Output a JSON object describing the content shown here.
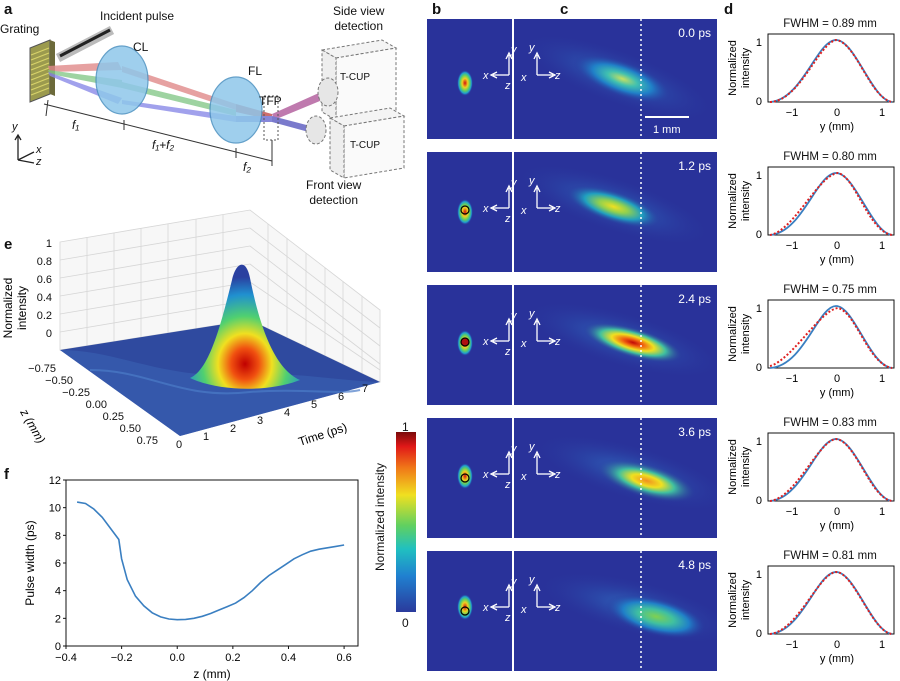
{
  "panels": {
    "a": "a",
    "b": "b",
    "c": "c",
    "d": "d",
    "e": "e",
    "f": "f"
  },
  "setup": {
    "grating": "Grating",
    "incident": "Incident pulse",
    "cl": "CL",
    "fl": "FL",
    "tfp": "TFP",
    "side_view": [
      "Side view",
      "detection"
    ],
    "front_view": [
      "Front view",
      "detection"
    ],
    "tcup": "T-CUP",
    "f1": "f₁",
    "f1f2": "f₁+f₂",
    "f2": "f₂",
    "axes": {
      "x": "x",
      "y": "y",
      "z": "z"
    }
  },
  "frames": [
    {
      "time": "0.0 ps",
      "fwhm": "FWHM = 0.89 mm"
    },
    {
      "time": "1.2 ps",
      "fwhm": "FWHM = 0.80 mm"
    },
    {
      "time": "2.4 ps",
      "fwhm": "FWHM = 0.75 mm"
    },
    {
      "time": "3.6 ps",
      "fwhm": "FWHM = 0.83 mm"
    },
    {
      "time": "4.8 ps",
      "fwhm": "FWHM = 0.81 mm"
    }
  ],
  "scalebar": "1 mm",
  "colorbar": {
    "label": "Normalized intensity",
    "max": "1",
    "min": "0"
  },
  "profile_axes": {
    "ylabel": [
      "Normalized",
      "intensity"
    ],
    "xlabel": "y (mm)",
    "xticks": [
      "−1",
      "0",
      "1"
    ],
    "yticks": [
      "1",
      "0"
    ]
  },
  "surface_3d": {
    "zlabel": [
      "Normalized",
      "intensity"
    ],
    "xlabel": "Time (ps)",
    "ylabel": "z (mm)",
    "zticks": [
      "1",
      "0.8",
      "0.6",
      "0.4",
      "0.2",
      "0"
    ],
    "tticks": [
      "0",
      "1",
      "2",
      "3",
      "4",
      "5",
      "6",
      "7"
    ],
    "zmmticks": [
      "−0.75",
      "−0.50",
      "−0.25",
      "0.00",
      "0.25",
      "0.50",
      "0.75"
    ]
  },
  "chart_data": {
    "type": "line",
    "title": "",
    "xlabel": "z (mm)",
    "ylabel": "Pulse width (ps)",
    "xlim": [
      -0.4,
      0.65
    ],
    "ylim": [
      0,
      12
    ],
    "xticks": [
      "−0.4",
      "−0.2",
      "0.0",
      "0.2",
      "0.4",
      "0.6"
    ],
    "yticks": [
      "0",
      "2",
      "4",
      "6",
      "8",
      "10",
      "12"
    ],
    "series": [
      {
        "name": "pulse width",
        "x": [
          -0.36,
          -0.33,
          -0.3,
          -0.27,
          -0.24,
          -0.21,
          -0.2,
          -0.18,
          -0.15,
          -0.12,
          -0.09,
          -0.06,
          -0.03,
          0.0,
          0.03,
          0.06,
          0.09,
          0.12,
          0.15,
          0.18,
          0.21,
          0.24,
          0.27,
          0.3,
          0.33,
          0.36,
          0.39,
          0.42,
          0.45,
          0.48,
          0.51,
          0.54,
          0.57,
          0.6
        ],
        "values": [
          10.4,
          10.3,
          9.9,
          9.3,
          8.5,
          7.7,
          6.3,
          4.8,
          3.6,
          2.9,
          2.4,
          2.1,
          1.95,
          1.9,
          1.92,
          2.0,
          2.15,
          2.35,
          2.6,
          2.85,
          3.1,
          3.5,
          4.0,
          4.6,
          5.1,
          5.5,
          5.9,
          6.3,
          6.6,
          6.85,
          7.0,
          7.1,
          7.2,
          7.3
        ]
      }
    ]
  }
}
